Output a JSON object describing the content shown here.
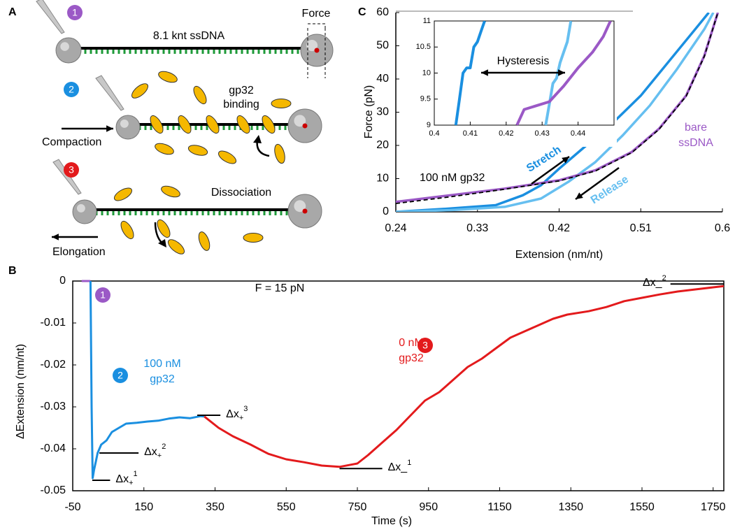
{
  "diagram": {
    "panel": "A",
    "steps": [
      {
        "number": "1",
        "color": "#9b59c6"
      },
      {
        "number": "2",
        "color": "#1a8fe0"
      },
      {
        "number": "3",
        "color": "#e31a1c"
      }
    ],
    "labels": {
      "length": "8.1 knt ssDNA",
      "force": "Force",
      "binding": [
        "gp32",
        "binding"
      ],
      "compaction": "Compaction",
      "dissociation": "Dissociation",
      "elongation": "Elongation"
    }
  },
  "chart_data": [
    {
      "type": "line",
      "panel": "C",
      "xlabel": "Extension (nm/nt)",
      "ylabel": "Force (pN)",
      "xlim": [
        0.24,
        0.6
      ],
      "ylim": [
        0,
        60
      ],
      "xticks": [
        0.24,
        0.33,
        0.42,
        0.51,
        0.6
      ],
      "yticks": [
        0,
        10,
        20,
        30,
        40,
        50,
        60
      ],
      "annotation": "100 nM gp32",
      "series": [
        {
          "name": "Stretch",
          "color": "#1a8fe0",
          "x": [
            0.24,
            0.3,
            0.35,
            0.38,
            0.4,
            0.42,
            0.45,
            0.48,
            0.51,
            0.54,
            0.57,
            0.585
          ],
          "values": [
            0,
            1,
            2,
            5,
            8,
            13,
            20,
            27,
            35,
            45,
            55,
            60
          ]
        },
        {
          "name": "Release",
          "color": "#66bff0",
          "x": [
            0.24,
            0.3,
            0.36,
            0.4,
            0.43,
            0.46,
            0.49,
            0.52,
            0.55,
            0.58,
            0.59
          ],
          "values": [
            0,
            0.5,
            1.5,
            4,
            9,
            15,
            23,
            32,
            43,
            55,
            60
          ]
        },
        {
          "name": [
            "bare",
            "ssDNA"
          ],
          "color": "#9b59c6",
          "x": [
            0.24,
            0.3,
            0.36,
            0.42,
            0.46,
            0.5,
            0.53,
            0.56,
            0.58,
            0.595
          ],
          "values": [
            3,
            5,
            7,
            9.5,
            12.5,
            18,
            25,
            35,
            47,
            60
          ]
        }
      ],
      "fit": {
        "color": "#000000",
        "dashed": true,
        "x": [
          0.24,
          0.3,
          0.36,
          0.42,
          0.46,
          0.5,
          0.53,
          0.56,
          0.58,
          0.595
        ],
        "values": [
          2.5,
          4.5,
          6.8,
          9.3,
          12.3,
          17.8,
          24.8,
          34.8,
          46.8,
          60
        ]
      },
      "inset": {
        "xlim": [
          0.4,
          0.45
        ],
        "ylim": [
          9,
          11
        ],
        "xticks": [
          0.4,
          0.41,
          0.42,
          0.43,
          0.44
        ],
        "yticks": [
          9,
          9.5,
          10,
          10.5,
          11
        ],
        "annotation": "Hysteresis",
        "series": [
          {
            "color": "#1a8fe0",
            "x": [
              0.406,
              0.407,
              0.408,
              0.409,
              0.41,
              0.411,
              0.412,
              0.413,
              0.414
            ],
            "values": [
              9,
              9.5,
              10,
              10.1,
              10.1,
              10.5,
              10.6,
              10.8,
              11
            ]
          },
          {
            "color": "#66bff0",
            "x": [
              0.431,
              0.432,
              0.433,
              0.434,
              0.435,
              0.436,
              0.437,
              0.438
            ],
            "values": [
              9,
              9.4,
              9.8,
              9.9,
              10.2,
              10.4,
              10.6,
              11
            ]
          },
          {
            "color": "#9b59c6",
            "x": [
              0.423,
              0.425,
              0.432,
              0.436,
              0.44,
              0.444,
              0.447,
              0.449
            ],
            "values": [
              9,
              9.3,
              9.45,
              9.75,
              10.1,
              10.4,
              10.7,
              11
            ]
          }
        ]
      }
    },
    {
      "type": "line",
      "panel": "B",
      "xlabel": "Time (s)",
      "ylabel": "ΔExtension (nm/nt)",
      "xlim": [
        -50,
        1780
      ],
      "ylim": [
        -0.05,
        0
      ],
      "xticks": [
        -50,
        150,
        350,
        550,
        750,
        950,
        1150,
        1350,
        1550,
        1750
      ],
      "yticks": [
        0,
        -0.01,
        -0.02,
        -0.03,
        -0.04,
        -0.05
      ],
      "annotation": "F = 15 pN",
      "steps": [
        {
          "number": "1",
          "color": "#9b59c6"
        },
        {
          "number": "2",
          "color": "#1a8fe0"
        },
        {
          "number": "3",
          "color": "#e31a1c"
        }
      ],
      "conditions": [
        {
          "text": [
            "100 nM",
            "gp32"
          ],
          "color": "#1a8fe0"
        },
        {
          "text": [
            "0 nM",
            "gp32"
          ],
          "color": "#e31a1c"
        }
      ],
      "series": [
        {
          "color": "#9b59c6",
          "x": [
            -25,
            -15,
            -5,
            0
          ],
          "values": [
            0,
            0,
            0,
            0
          ]
        },
        {
          "color": "#1a8fe0",
          "x": [
            0,
            3,
            6,
            10,
            15,
            20,
            30,
            45,
            60,
            80,
            100,
            130,
            160,
            190,
            220,
            250,
            280,
            310,
            320
          ],
          "values": [
            0,
            -0.03,
            -0.047,
            -0.045,
            -0.043,
            -0.041,
            -0.039,
            -0.038,
            -0.036,
            -0.035,
            -0.034,
            -0.0338,
            -0.0335,
            -0.0333,
            -0.0328,
            -0.0325,
            -0.0327,
            -0.0322,
            -0.0323
          ]
        },
        {
          "color": "#e31a1c",
          "x": [
            320,
            360,
            400,
            450,
            500,
            550,
            600,
            650,
            700,
            750,
            780,
            820,
            860,
            900,
            940,
            980,
            1020,
            1060,
            1100,
            1140,
            1180,
            1220,
            1260,
            1300,
            1340,
            1400,
            1450,
            1500,
            1550,
            1600,
            1650,
            1700,
            1750,
            1780
          ],
          "values": [
            -0.0323,
            -0.035,
            -0.037,
            -0.039,
            -0.0412,
            -0.0425,
            -0.0432,
            -0.044,
            -0.0443,
            -0.0435,
            -0.0415,
            -0.0385,
            -0.0355,
            -0.032,
            -0.0285,
            -0.0265,
            -0.0235,
            -0.0205,
            -0.0185,
            -0.016,
            -0.0135,
            -0.012,
            -0.0105,
            -0.009,
            -0.008,
            -0.0072,
            -0.0062,
            -0.0048,
            -0.004,
            -0.0032,
            -0.0025,
            -0.002,
            -0.0015,
            -0.0012
          ]
        }
      ],
      "markers": [
        {
          "base": "Δx",
          "sub": "+",
          "sup": "1",
          "value": -0.0475
        },
        {
          "base": "Δx",
          "sub": "+",
          "sup": "2",
          "value": -0.041
        },
        {
          "base": "Δx",
          "sub": "+",
          "sup": "3",
          "value": -0.032
        },
        {
          "base": "Δx_",
          "sup": "1",
          "value": -0.0447
        },
        {
          "base": "Δx_",
          "sup": "2",
          "value": -0.0007
        }
      ]
    }
  ]
}
